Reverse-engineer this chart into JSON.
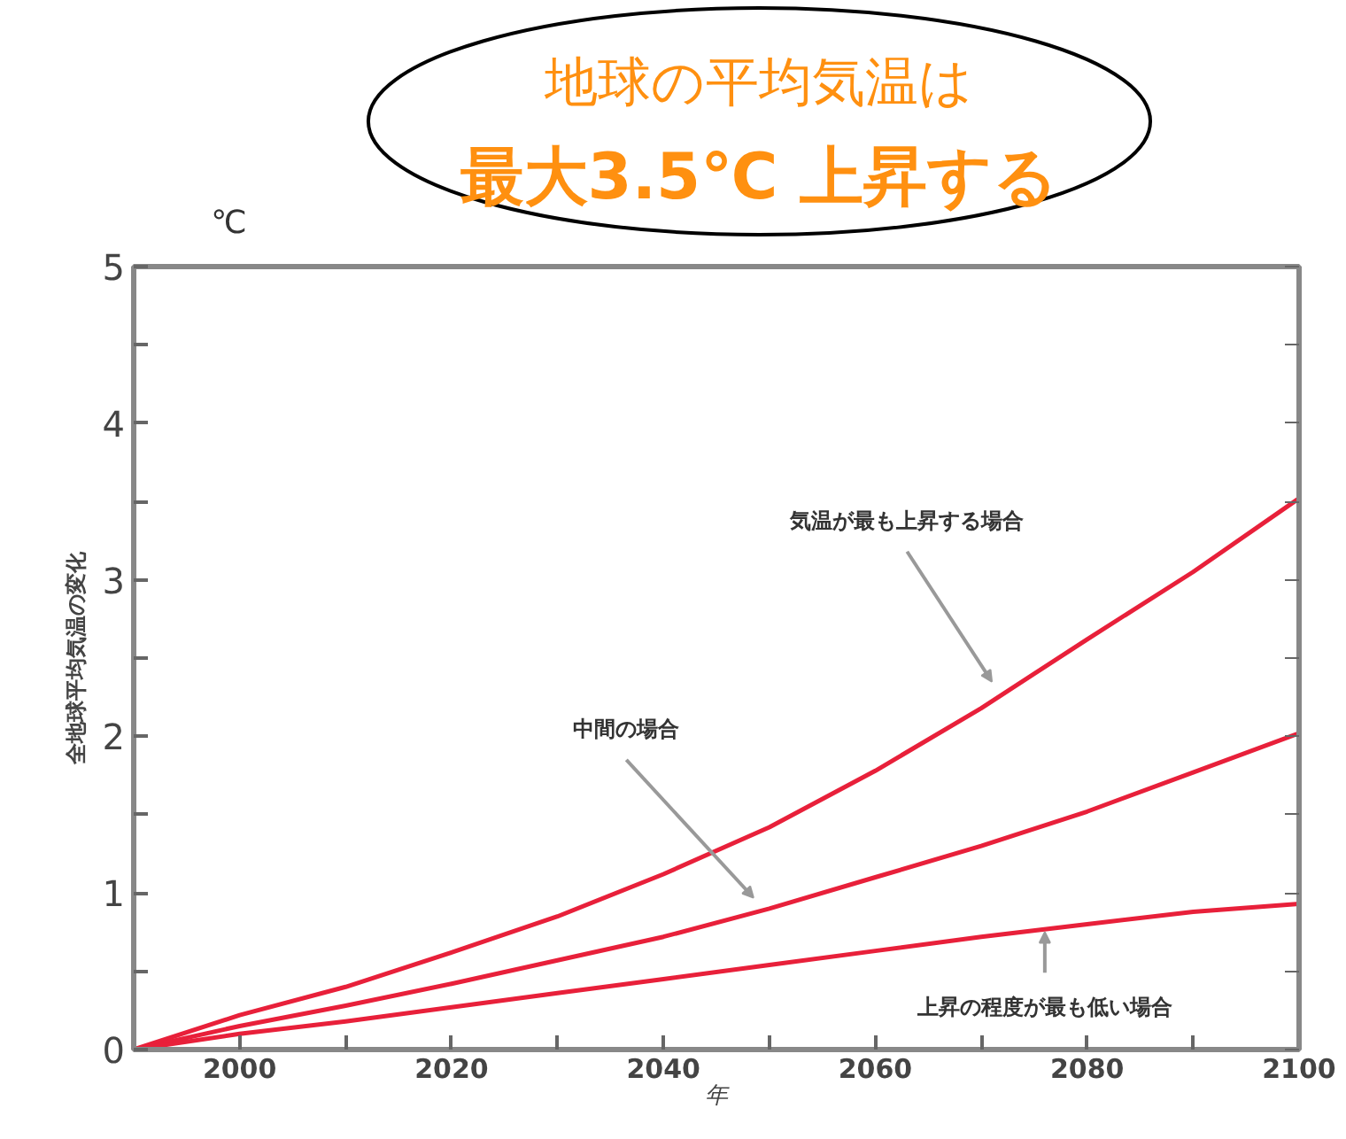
{
  "chart_data": {
    "type": "line",
    "title": "地球の平均気温は",
    "subtitle": "最大3.5℃ 上昇する",
    "xlabel": "年",
    "ylabel": "全地球平均気温の変化",
    "x": [
      1990,
      2000,
      2010,
      2020,
      2030,
      2040,
      2050,
      2060,
      2070,
      2080,
      2090,
      2100
    ],
    "series": [
      {
        "color": "#e8203a",
        "values": [
          0,
          0.22,
          0.4,
          0.62,
          0.85,
          1.12,
          1.42,
          1.78,
          2.18,
          2.62,
          3.05,
          3.52
        ]
      },
      {
        "color": "#e8203a",
        "values": [
          0,
          0.15,
          0.28,
          0.42,
          0.57,
          0.72,
          0.9,
          1.1,
          1.3,
          1.52,
          1.77,
          2.02
        ]
      },
      {
        "color": "#e8203a",
        "values": [
          0,
          0.1,
          0.18,
          0.27,
          0.36,
          0.45,
          0.54,
          0.63,
          0.72,
          0.8,
          0.88,
          0.93
        ]
      }
    ],
    "annotations": [
      "℃",
      {
        "text": "気温が最も上昇する場合",
        "x": 2071,
        "y": 2.3
      },
      {
        "text": "中間の場合",
        "x": 2048.5,
        "y": 0.92
      },
      {
        "text": "上昇の程度が最も低い場合",
        "x": 2076,
        "y": 0.8
      }
    ],
    "xlim": [
      1990,
      2100
    ],
    "xticks": [
      2000,
      {
        "value": 2010,
        "label": null
      },
      2020,
      {
        "value": 2030,
        "label": null
      },
      2040,
      {
        "value": 2050,
        "label": null
      },
      2060,
      {
        "value": 2070,
        "label": null
      },
      2080,
      {
        "value": 2090,
        "label": null
      },
      2100
    ],
    "ylim": [
      0,
      5
    ],
    "yticks": [
      0,
      {
        "value": 0.5,
        "label": null
      },
      1,
      {
        "value": 1.5,
        "label": null
      },
      2,
      {
        "value": 2.5,
        "label": null
      },
      3,
      {
        "value": 3.5,
        "label": null
      },
      4,
      {
        "value": 4.5,
        "label": null
      },
      5
    ],
    "grid": false,
    "line_style": "solid",
    "marker": "none"
  }
}
